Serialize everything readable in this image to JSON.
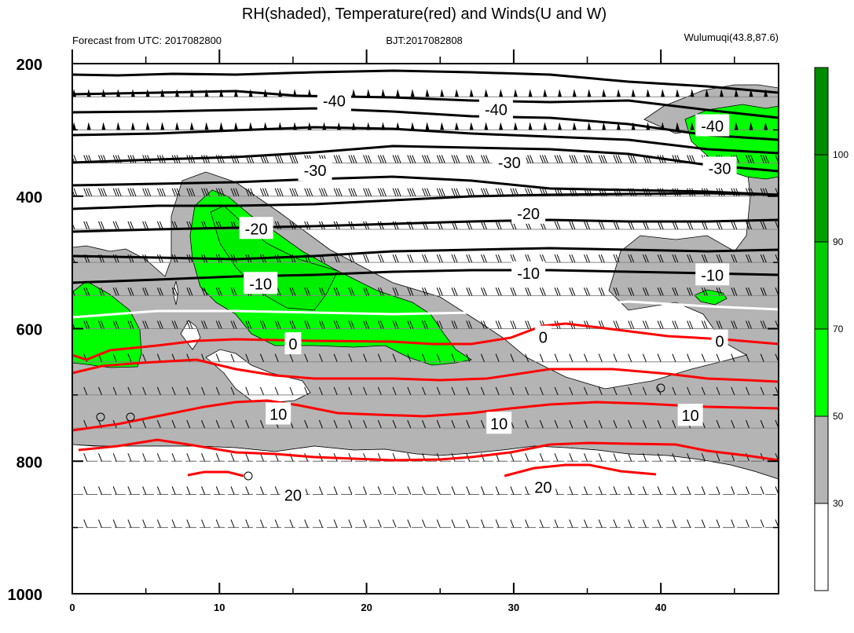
{
  "chart_data": {
    "type": "contour",
    "title": "RH(shaded), Temperature(red) and Winds(U and W)",
    "subtitle_left": "Forecast from UTC: 2017082800",
    "subtitle_center": "BJT:2017082808",
    "subtitle_right": "Wulumuqi(43.8,87.6)",
    "xlim": [
      0,
      48
    ],
    "ylim": [
      1000,
      200
    ],
    "x_ticks": [
      0,
      10,
      20,
      30,
      40
    ],
    "y_ticks": [
      200,
      400,
      600,
      800,
      1000
    ],
    "colorbar": {
      "levels": [
        30,
        50,
        70,
        90,
        100
      ],
      "colors": [
        "#ffffff",
        "#b4b4b4",
        "#00ff00",
        "#00cd00",
        "#00a000",
        "#008b00"
      ]
    },
    "temperature_labels": [
      {
        "x": 17.8,
        "p": 255,
        "text": "-40"
      },
      {
        "x": 28.8,
        "p": 268,
        "text": "-40"
      },
      {
        "x": 43.5,
        "p": 293,
        "text": "-40"
      },
      {
        "x": 16.5,
        "p": 360,
        "text": "-30"
      },
      {
        "x": 29.7,
        "p": 348,
        "text": "-30"
      },
      {
        "x": 44.0,
        "p": 357,
        "text": "-30"
      },
      {
        "x": 12.5,
        "p": 448,
        "text": "-20"
      },
      {
        "x": 31.0,
        "p": 425,
        "text": "-20"
      },
      {
        "x": 12.8,
        "p": 531,
        "text": "-10"
      },
      {
        "x": 31.0,
        "p": 515,
        "text": "-10"
      },
      {
        "x": 43.5,
        "p": 518,
        "text": "-10"
      },
      {
        "x": 15.0,
        "p": 622,
        "text": "0"
      },
      {
        "x": 32.0,
        "p": 612,
        "text": "0"
      },
      {
        "x": 44.0,
        "p": 618,
        "text": "0"
      },
      {
        "x": 14.0,
        "p": 728,
        "text": "10"
      },
      {
        "x": 29.0,
        "p": 742,
        "text": "10"
      },
      {
        "x": 42.0,
        "p": 730,
        "text": "10"
      },
      {
        "x": 15.0,
        "p": 850,
        "text": "20"
      },
      {
        "x": 32.0,
        "p": 838,
        "text": "20"
      }
    ]
  }
}
